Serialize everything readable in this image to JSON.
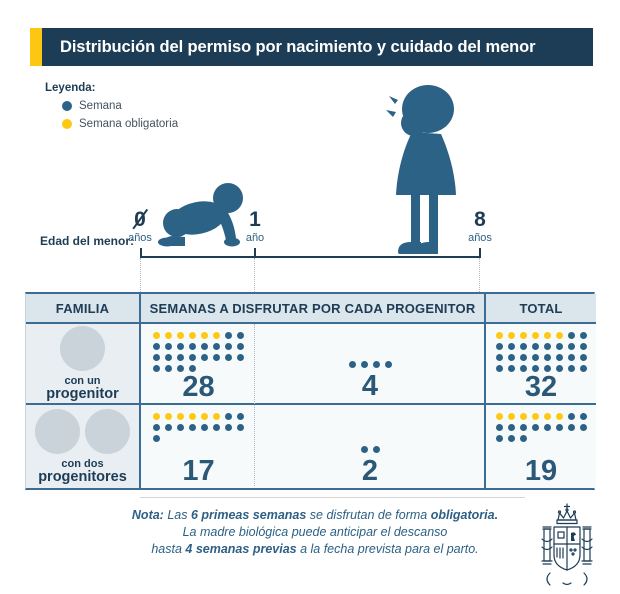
{
  "title": "Distribución del permiso por nacimiento y cuidado del menor",
  "legend": {
    "heading": "Leyenda:",
    "items": [
      {
        "label": "Semana",
        "color": "#2d6287"
      },
      {
        "label": "Semana obligatoria",
        "color": "#fdc913"
      }
    ]
  },
  "timeline": {
    "label": "Edad del menor:",
    "ticks": [
      {
        "value": "0",
        "unit": "años",
        "slashed": true
      },
      {
        "value": "1",
        "unit": "año",
        "slashed": false
      },
      {
        "value": "8",
        "unit": "años",
        "slashed": false
      }
    ]
  },
  "table": {
    "headers": {
      "family": "FAMILIA",
      "weeks": "SEMANAS A DISFRUTAR POR CADA PROGENITOR",
      "total": "TOTAL"
    },
    "rows": [
      {
        "family_line1": "con un",
        "family_line2": "progenitor",
        "parent_circles": 1,
        "period1": {
          "weeks": "28",
          "count": 28,
          "obligatory": 6,
          "per_row": 8
        },
        "period2": {
          "weeks": "4",
          "count": 4,
          "obligatory": 0,
          "per_row": 4
        },
        "total": {
          "weeks": "32",
          "count": 32,
          "obligatory": 6,
          "per_row": 8
        }
      },
      {
        "family_line1": "con dos",
        "family_line2": "progenitores",
        "parent_circles": 2,
        "period1": {
          "weeks": "17",
          "count": 17,
          "obligatory": 6,
          "per_row": 8
        },
        "period2": {
          "weeks": "2",
          "count": 2,
          "obligatory": 0,
          "per_row": 2
        },
        "total": {
          "weeks": "19",
          "count": 19,
          "obligatory": 6,
          "per_row": 8
        }
      }
    ]
  },
  "note": {
    "lines": [
      [
        {
          "t": "Nota: ",
          "b": true
        },
        {
          "t": "Las ",
          "b": false
        },
        {
          "t": "6 primeas semanas ",
          "b": true
        },
        {
          "t": "se disfrutan de forma ",
          "b": false
        },
        {
          "t": "obligatoria.",
          "b": true
        }
      ],
      [
        {
          "t": "La madre biológica puede anticipar el descanso",
          "b": false
        }
      ],
      [
        {
          "t": "hasta ",
          "b": false
        },
        {
          "t": "4 semanas previas ",
          "b": true
        },
        {
          "t": "a la fecha prevista para el parto.",
          "b": false
        }
      ]
    ]
  },
  "colors": {
    "navy": "#1d3c55",
    "steel_blue": "#2d6287",
    "yellow": "#fdc913",
    "table_border": "#3a6c94"
  },
  "chart_data": {
    "type": "table",
    "title": "Distribución del permiso por nacimiento y cuidado del menor",
    "legend": [
      "Semana",
      "Semana obligatoria"
    ],
    "age_axis": {
      "label": "Edad del menor:",
      "ticks": [
        "0 años",
        "1 año",
        "8 años"
      ]
    },
    "columns": [
      "FAMILIA",
      "Semanas a disfrutar por cada progenitor (0-1 año)",
      "Semanas a disfrutar por cada progenitor (1-8 años)",
      "TOTAL"
    ],
    "rows": [
      {
        "familia": "con un progenitor",
        "semanas_0_1": 28,
        "semanas_1_8": 4,
        "total": 32,
        "semanas_obligatorias": 6
      },
      {
        "familia": "con dos progenitores",
        "semanas_0_1": 17,
        "semanas_1_8": 2,
        "total": 19,
        "semanas_obligatorias": 6
      }
    ]
  }
}
